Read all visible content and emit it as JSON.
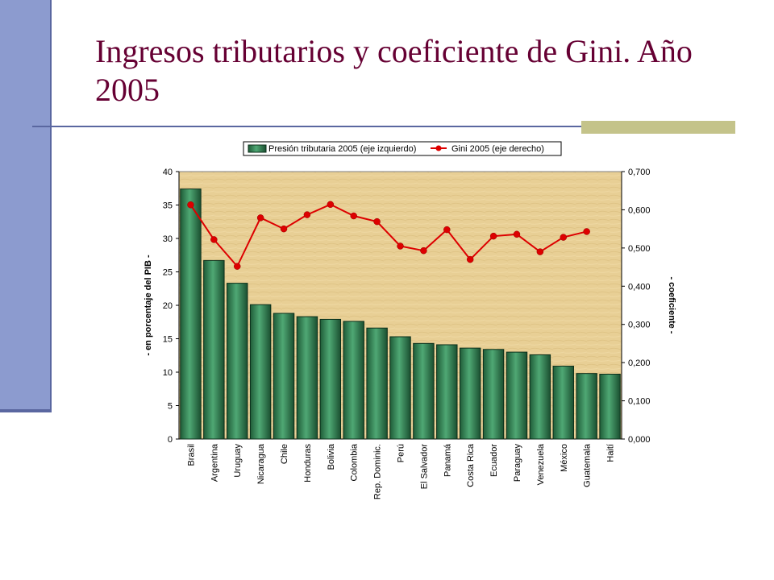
{
  "slide": {
    "title": "Ingresos tributarios y coeficiente de Gini. Año 2005"
  },
  "colors": {
    "title": "#660033",
    "side_bar": "#8c9bcf",
    "rule": "#5a67a0",
    "accent": "#c4c38a",
    "bar_fill": "#2e7d4f",
    "bar_stroke": "#0b2e1a",
    "line": "#dd0000",
    "plot_bg": "#e8cf95"
  },
  "chart_data": {
    "type": "bar",
    "categories": [
      "Brasil",
      "Argentina",
      "Uruguay",
      "Nicaragua",
      "Chile",
      "Honduras",
      "Bolivia",
      "Colombia",
      "Rep. Dominic.",
      "Perú",
      "El Salvador",
      "Panamá",
      "Costa Rica",
      "Ecuador",
      "Paraguay",
      "Venezuela",
      "México",
      "Guatemala",
      "Haití"
    ],
    "series": [
      {
        "name": "Presión tributaria 2005 (eje izquierdo)",
        "type": "bar",
        "axis": "left",
        "values": [
          37.4,
          26.7,
          23.3,
          20.1,
          18.8,
          18.3,
          17.9,
          17.6,
          16.6,
          15.3,
          14.3,
          14.1,
          13.6,
          13.4,
          13.0,
          12.6,
          10.9,
          9.8,
          9.7
        ]
      },
      {
        "name": "Gini 2005 (eje derecho)",
        "type": "line",
        "axis": "right",
        "values": [
          0.613,
          0.522,
          0.452,
          0.579,
          0.55,
          0.587,
          0.614,
          0.584,
          0.569,
          0.505,
          0.493,
          0.548,
          0.47,
          0.531,
          0.536,
          0.49,
          0.528,
          0.543,
          null
        ]
      }
    ],
    "ylabel": "- en porcentaje del PIB -",
    "y2label": "- coeficiente -",
    "ylim": [
      0,
      40
    ],
    "y2lim": [
      0,
      0.7
    ],
    "yticks": [
      "0",
      "5",
      "10",
      "15",
      "20",
      "25",
      "30",
      "35",
      "40"
    ],
    "y2ticks": [
      "0,000",
      "0,100",
      "0,200",
      "0,300",
      "0,400",
      "0,500",
      "0,600",
      "0,700"
    ],
    "legend_position": "top"
  }
}
